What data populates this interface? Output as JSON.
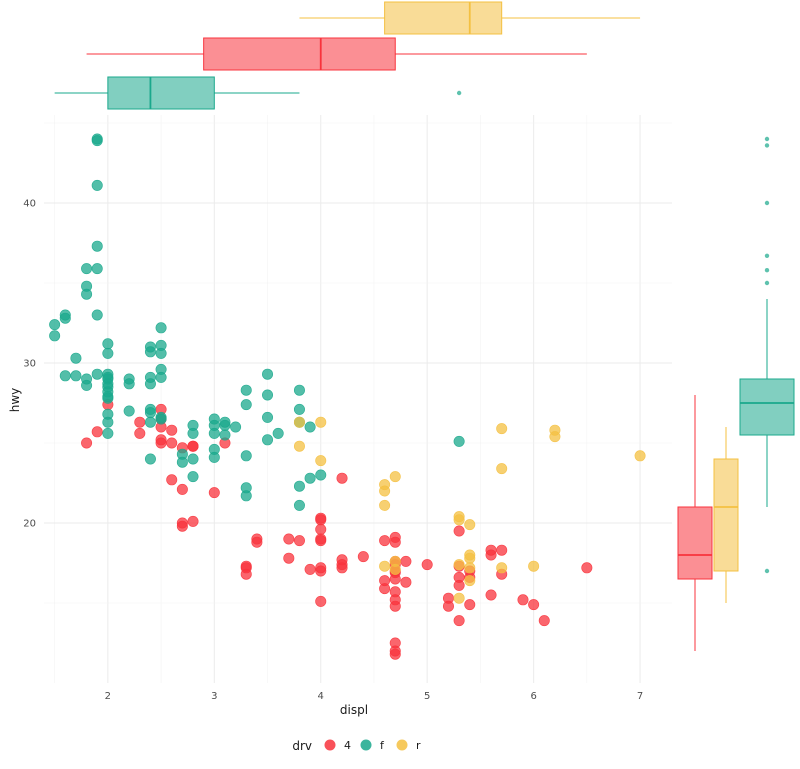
{
  "chart_data": {
    "type": "scatter",
    "title": "",
    "xlabel": "displ",
    "ylabel": "hwy",
    "xlim": [
      1.4,
      7.3
    ],
    "ylim": [
      10.0,
      45.5
    ],
    "x_ticks": [
      2,
      3,
      4,
      5,
      6,
      7
    ],
    "y_ticks": [
      20,
      30,
      40
    ],
    "x_tick_labels": [
      "2",
      "3",
      "4",
      "5",
      "6",
      "7"
    ],
    "y_tick_labels": [
      "20",
      "30",
      "40"
    ],
    "grid": true,
    "legend": {
      "title": "drv",
      "position": "bottom",
      "entries": [
        "4",
        "f",
        "r"
      ]
    },
    "colors": {
      "4": "#f8333c",
      "f": "#1aa88c",
      "r": "#f4c041"
    },
    "series": [
      {
        "name": "4",
        "points": [
          [
            1.8,
            25
          ],
          [
            1.9,
            25.7
          ],
          [
            2.0,
            27.4
          ],
          [
            2.3,
            26.3
          ],
          [
            2.3,
            25.6
          ],
          [
            2.5,
            25.0
          ],
          [
            2.5,
            27.1
          ],
          [
            2.5,
            26.5
          ],
          [
            2.5,
            26.0
          ],
          [
            2.5,
            25.2
          ],
          [
            2.6,
            25.0
          ],
          [
            2.6,
            25.8
          ],
          [
            2.6,
            22.7
          ],
          [
            2.7,
            24.7
          ],
          [
            2.7,
            20.0
          ],
          [
            2.7,
            19.8
          ],
          [
            2.7,
            22.1
          ],
          [
            2.8,
            24.8
          ],
          [
            2.8,
            20.1
          ],
          [
            2.8,
            24.8
          ],
          [
            3.0,
            21.9
          ],
          [
            3.1,
            25.0
          ],
          [
            3.3,
            17.3
          ],
          [
            3.3,
            16.8
          ],
          [
            3.3,
            17.2
          ],
          [
            3.4,
            19.0
          ],
          [
            3.4,
            18.8
          ],
          [
            3.7,
            17.8
          ],
          [
            3.7,
            19.0
          ],
          [
            3.8,
            18.9
          ],
          [
            3.9,
            17.1
          ],
          [
            4.0,
            17.0
          ],
          [
            4.0,
            17.2
          ],
          [
            4.0,
            19.6
          ],
          [
            4.0,
            20.3
          ],
          [
            4.0,
            20.2
          ],
          [
            4.0,
            18.9
          ],
          [
            4.0,
            15.1
          ],
          [
            4.0,
            19.0
          ],
          [
            4.2,
            17.4
          ],
          [
            4.2,
            17.2
          ],
          [
            4.2,
            22.8
          ],
          [
            4.2,
            17.7
          ],
          [
            4.4,
            17.9
          ],
          [
            4.6,
            18.9
          ],
          [
            4.6,
            16.4
          ],
          [
            4.6,
            15.9
          ],
          [
            4.7,
            17.4
          ],
          [
            4.7,
            17.0
          ],
          [
            4.7,
            15.7
          ],
          [
            4.7,
            16.9
          ],
          [
            4.7,
            11.8
          ],
          [
            4.7,
            12.0
          ],
          [
            4.7,
            12.5
          ],
          [
            4.7,
            14.8
          ],
          [
            4.7,
            19.1
          ],
          [
            4.7,
            17.6
          ],
          [
            4.7,
            16.5
          ],
          [
            4.7,
            15.2
          ],
          [
            4.7,
            18.8
          ],
          [
            4.8,
            17.6
          ],
          [
            4.8,
            16.3
          ],
          [
            5.0,
            17.4
          ],
          [
            5.2,
            14.8
          ],
          [
            5.2,
            15.3
          ],
          [
            5.3,
            16.6
          ],
          [
            5.3,
            16.1
          ],
          [
            5.3,
            17.3
          ],
          [
            5.3,
            19.5
          ],
          [
            5.3,
            13.9
          ],
          [
            5.4,
            14.9
          ],
          [
            5.4,
            16.6
          ],
          [
            5.4,
            17.0
          ],
          [
            5.6,
            18.0
          ],
          [
            5.6,
            18.3
          ],
          [
            5.6,
            15.5
          ],
          [
            5.7,
            16.8
          ],
          [
            5.7,
            18.3
          ],
          [
            5.9,
            15.2
          ],
          [
            6.0,
            14.9
          ],
          [
            6.1,
            13.9
          ],
          [
            6.5,
            17.2
          ]
        ]
      },
      {
        "name": "f",
        "points": [
          [
            1.5,
            31.7
          ],
          [
            1.5,
            32.4
          ],
          [
            1.6,
            32.8
          ],
          [
            1.6,
            29.2
          ],
          [
            1.6,
            33.0
          ],
          [
            1.7,
            29.2
          ],
          [
            1.7,
            30.3
          ],
          [
            1.8,
            34.3
          ],
          [
            1.8,
            28.6
          ],
          [
            1.8,
            29.0
          ],
          [
            1.8,
            34.8
          ],
          [
            1.8,
            35.9
          ],
          [
            1.9,
            44.0
          ],
          [
            1.9,
            43.9
          ],
          [
            1.9,
            41.1
          ],
          [
            1.9,
            33.0
          ],
          [
            1.9,
            29.3
          ],
          [
            1.9,
            37.3
          ],
          [
            1.9,
            35.9
          ],
          [
            2.0,
            29.0
          ],
          [
            2.0,
            30.6
          ],
          [
            2.0,
            31.2
          ],
          [
            2.0,
            29.3
          ],
          [
            2.0,
            28.2
          ],
          [
            2.0,
            27.8
          ],
          [
            2.0,
            27.9
          ],
          [
            2.0,
            26.3
          ],
          [
            2.0,
            25.6
          ],
          [
            2.0,
            26.8
          ],
          [
            2.0,
            29.1
          ],
          [
            2.0,
            28.5
          ],
          [
            2.0,
            28.7
          ],
          [
            2.2,
            27.0
          ],
          [
            2.2,
            29.0
          ],
          [
            2.2,
            28.7
          ],
          [
            2.4,
            31.0
          ],
          [
            2.4,
            30.7
          ],
          [
            2.4,
            29.1
          ],
          [
            2.4,
            28.7
          ],
          [
            2.4,
            27.1
          ],
          [
            2.4,
            26.9
          ],
          [
            2.4,
            24.0
          ],
          [
            2.4,
            26.3
          ],
          [
            2.5,
            32.2
          ],
          [
            2.5,
            30.6
          ],
          [
            2.5,
            29.6
          ],
          [
            2.5,
            29.1
          ],
          [
            2.5,
            26.5
          ],
          [
            2.5,
            31.1
          ],
          [
            2.5,
            26.6
          ],
          [
            2.7,
            24.3
          ],
          [
            2.7,
            23.8
          ],
          [
            2.8,
            26.1
          ],
          [
            2.8,
            25.6
          ],
          [
            2.8,
            24.0
          ],
          [
            2.8,
            22.9
          ],
          [
            3.0,
            26.1
          ],
          [
            3.0,
            26.5
          ],
          [
            3.0,
            25.6
          ],
          [
            3.0,
            24.6
          ],
          [
            3.0,
            24.1
          ],
          [
            3.1,
            26.1
          ],
          [
            3.1,
            26.3
          ],
          [
            3.1,
            25.5
          ],
          [
            3.2,
            26.0
          ],
          [
            3.3,
            28.3
          ],
          [
            3.3,
            27.4
          ],
          [
            3.3,
            24.2
          ],
          [
            3.3,
            22.2
          ],
          [
            3.3,
            21.7
          ],
          [
            3.5,
            29.3
          ],
          [
            3.5,
            28.0
          ],
          [
            3.5,
            26.6
          ],
          [
            3.5,
            25.2
          ],
          [
            3.6,
            25.6
          ],
          [
            3.8,
            28.3
          ],
          [
            3.8,
            27.1
          ],
          [
            3.8,
            26.3
          ],
          [
            3.8,
            22.3
          ],
          [
            3.8,
            21.1
          ],
          [
            3.9,
            22.8
          ],
          [
            3.9,
            26.0
          ],
          [
            4.0,
            23.0
          ],
          [
            5.3,
            25.1
          ]
        ]
      },
      {
        "name": "r",
        "points": [
          [
            3.8,
            26.3
          ],
          [
            3.8,
            24.8
          ],
          [
            4.0,
            26.3
          ],
          [
            4.0,
            23.9
          ],
          [
            4.6,
            22.4
          ],
          [
            4.6,
            22.0
          ],
          [
            4.6,
            21.1
          ],
          [
            4.6,
            17.3
          ],
          [
            4.7,
            22.9
          ],
          [
            4.7,
            17.6
          ],
          [
            4.7,
            17.1
          ],
          [
            5.3,
            20.2
          ],
          [
            5.3,
            20.4
          ],
          [
            5.3,
            15.3
          ],
          [
            5.3,
            17.4
          ],
          [
            5.4,
            19.9
          ],
          [
            5.4,
            17.8
          ],
          [
            5.4,
            18.0
          ],
          [
            5.4,
            17.2
          ],
          [
            5.4,
            16.4
          ],
          [
            5.7,
            25.9
          ],
          [
            5.7,
            23.4
          ],
          [
            5.7,
            17.2
          ],
          [
            6.0,
            17.3
          ],
          [
            6.2,
            25.8
          ],
          [
            6.2,
            25.4
          ],
          [
            7.0,
            24.2
          ]
        ]
      }
    ],
    "marginal_boxplots": {
      "x": [
        {
          "group": "f",
          "whisker_low": 1.5,
          "q1": 2.0,
          "median": 2.4,
          "q3": 3.0,
          "whisker_high": 3.8,
          "outliers": [
            5.3
          ]
        },
        {
          "group": "4",
          "whisker_low": 1.8,
          "q1": 2.9,
          "median": 4.0,
          "q3": 4.7,
          "whisker_high": 6.5,
          "outliers": []
        },
        {
          "group": "r",
          "whisker_low": 3.8,
          "q1": 4.6,
          "median": 5.4,
          "q3": 5.7,
          "whisker_high": 7.0,
          "outliers": []
        }
      ],
      "y": [
        {
          "group": "4",
          "whisker_low": 12,
          "q1": 16.5,
          "median": 18,
          "q3": 21,
          "whisker_high": 28,
          "outliers": []
        },
        {
          "group": "r",
          "whisker_low": 15,
          "q1": 17,
          "median": 21,
          "q3": 24,
          "whisker_high": 26,
          "outliers": []
        },
        {
          "group": "f",
          "whisker_low": 21,
          "q1": 25.5,
          "median": 27.5,
          "q3": 29,
          "whisker_high": 34,
          "outliers": [
            17,
            35,
            35.8,
            36.7,
            40,
            43.6,
            44
          ]
        }
      ]
    }
  }
}
